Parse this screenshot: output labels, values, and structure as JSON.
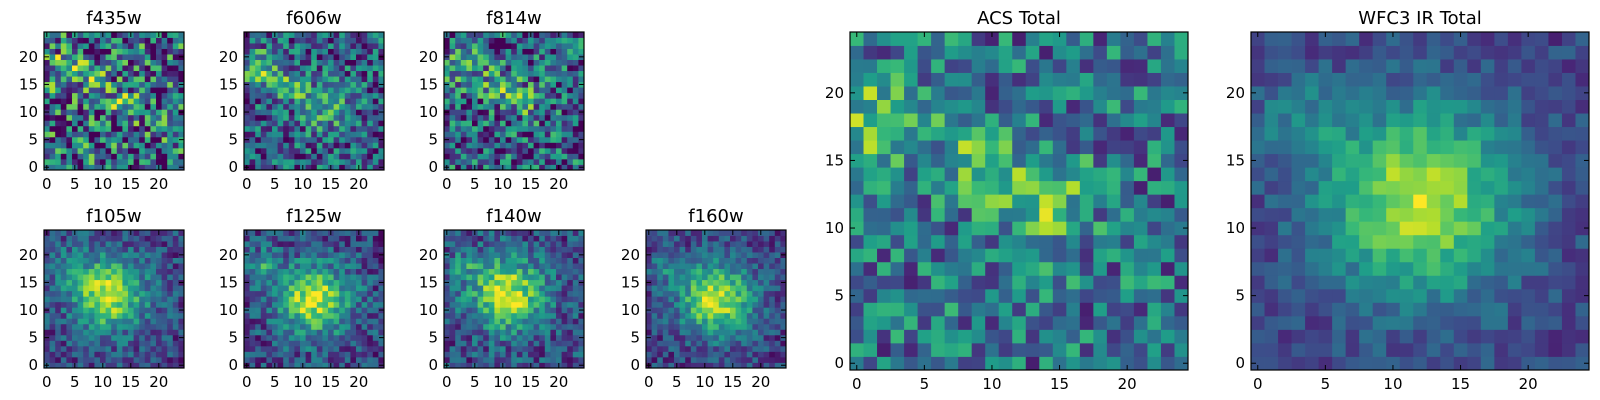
{
  "figure": {
    "colormap": "viridis",
    "image_size": [
      25,
      25
    ]
  },
  "chart_data": [
    {
      "type": "heatmap",
      "title": "f435w",
      "model": {
        "noise": 0.48,
        "blobs": [
          [
            3,
            18,
            2.8,
            0.3
          ],
          [
            9,
            15,
            2.2,
            0.22
          ],
          [
            14,
            12,
            2.4,
            0.24
          ]
        ],
        "floor": 0.35,
        "seed": 11
      },
      "xticks": [
        0,
        5,
        10,
        15,
        20
      ],
      "yticks": [
        0,
        5,
        10,
        15,
        20
      ],
      "xlim": [
        -0.5,
        24.5
      ],
      "ylim": [
        -0.5,
        24.5
      ]
    },
    {
      "type": "heatmap",
      "title": "f606w",
      "model": {
        "noise": 0.34,
        "blobs": [
          [
            2,
            18,
            2.2,
            0.42
          ],
          [
            8,
            15,
            2.0,
            0.34
          ],
          [
            14,
            11,
            3.0,
            0.34
          ]
        ],
        "floor": 0.3,
        "seed": 23
      },
      "xticks": [
        0,
        5,
        10,
        15,
        20
      ],
      "yticks": [
        0,
        5,
        10,
        15,
        20
      ],
      "xlim": [
        -0.5,
        24.5
      ],
      "ylim": [
        -0.5,
        24.5
      ]
    },
    {
      "type": "heatmap",
      "title": "f814w",
      "model": {
        "noise": 0.4,
        "blobs": [
          [
            3,
            18,
            2.6,
            0.3
          ],
          [
            9,
            15,
            2.4,
            0.28
          ],
          [
            14,
            12,
            2.2,
            0.32
          ]
        ],
        "floor": 0.3,
        "seed": 37
      },
      "xticks": [
        0,
        5,
        10,
        15,
        20
      ],
      "yticks": [
        0,
        5,
        10,
        15,
        20
      ],
      "xlim": [
        -0.5,
        24.5
      ],
      "ylim": [
        -0.5,
        24.5
      ]
    },
    {
      "type": "heatmap",
      "title": "f105w",
      "model": {
        "noise": 0.2,
        "blobs": [
          [
            11,
            13,
            4.5,
            0.7
          ],
          [
            3,
            18,
            2.5,
            0.15
          ]
        ],
        "floor": 0.22,
        "seed": 41
      },
      "xticks": [
        0,
        5,
        10,
        15,
        20
      ],
      "yticks": [
        0,
        5,
        10,
        15,
        20
      ],
      "xlim": [
        -0.5,
        24.5
      ],
      "ylim": [
        -0.5,
        24.5
      ]
    },
    {
      "type": "heatmap",
      "title": "f125w",
      "model": {
        "noise": 0.22,
        "blobs": [
          [
            12,
            12,
            4.5,
            0.68
          ],
          [
            3,
            18,
            2.2,
            0.3
          ]
        ],
        "floor": 0.22,
        "seed": 53
      },
      "xticks": [
        0,
        5,
        10,
        15,
        20
      ],
      "yticks": [
        0,
        5,
        10,
        15,
        20
      ],
      "xlim": [
        -0.5,
        24.5
      ],
      "ylim": [
        -0.5,
        24.5
      ]
    },
    {
      "type": "heatmap",
      "title": "f140w",
      "model": {
        "noise": 0.22,
        "blobs": [
          [
            11,
            13,
            4.5,
            0.68
          ],
          [
            3,
            18,
            2.2,
            0.22
          ]
        ],
        "floor": 0.24,
        "seed": 67
      },
      "xticks": [
        0,
        5,
        10,
        15,
        20
      ],
      "yticks": [
        0,
        5,
        10,
        15,
        20
      ],
      "xlim": [
        -0.5,
        24.5
      ],
      "ylim": [
        -0.5,
        24.5
      ]
    },
    {
      "type": "heatmap",
      "title": "f160w",
      "model": {
        "noise": 0.18,
        "blobs": [
          [
            12,
            12,
            4.5,
            0.72
          ],
          [
            3,
            18,
            2.2,
            0.22
          ]
        ],
        "floor": 0.2,
        "seed": 79
      },
      "xticks": [
        0,
        5,
        10,
        15,
        20
      ],
      "yticks": [
        0,
        5,
        10,
        15,
        20
      ],
      "xlim": [
        -0.5,
        24.5
      ],
      "ylim": [
        -0.5,
        24.5
      ]
    },
    {
      "type": "heatmap",
      "title": "ACS Total",
      "model": {
        "noise": 0.3,
        "blobs": [
          [
            2,
            18,
            2.2,
            0.4
          ],
          [
            9,
            15,
            2.0,
            0.34
          ],
          [
            14,
            12,
            2.4,
            0.36
          ]
        ],
        "floor": 0.38,
        "seed": 97
      },
      "xticks": [
        0,
        5,
        10,
        15,
        20
      ],
      "yticks": [
        0,
        5,
        10,
        15,
        20
      ],
      "xlim": [
        -0.5,
        24.5
      ],
      "ylim": [
        -0.5,
        24.5
      ]
    },
    {
      "type": "heatmap",
      "title": "WFC3 IR Total",
      "model": {
        "noise": 0.12,
        "blobs": [
          [
            12,
            12,
            5.0,
            0.7
          ],
          [
            3,
            18,
            2.4,
            0.22
          ]
        ],
        "floor": 0.2,
        "seed": 113
      },
      "xticks": [
        0,
        5,
        10,
        15,
        20
      ],
      "yticks": [
        0,
        5,
        10,
        15,
        20
      ],
      "xlim": [
        -0.5,
        24.5
      ],
      "ylim": [
        -0.5,
        24.5
      ]
    }
  ]
}
